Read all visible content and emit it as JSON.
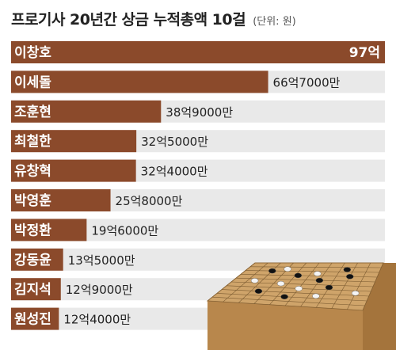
{
  "chart_data": {
    "type": "bar",
    "orientation": "horizontal",
    "title": "프로기사 20년간 상금 누적총액 10걸",
    "unit_label": "(단위: 원)",
    "categories": [
      "이창호",
      "이세돌",
      "조훈현",
      "최철한",
      "유창혁",
      "박영훈",
      "박정환",
      "강동윤",
      "김지석",
      "원성진"
    ],
    "values": [
      9700000000,
      6670000000,
      3890000000,
      3250000000,
      3240000000,
      2580000000,
      1960000000,
      1350000000,
      1290000000,
      1240000000
    ],
    "value_labels": [
      "97억",
      "66억7000만",
      "38억9000만",
      "32억5000만",
      "32억4000만",
      "25억8000만",
      "19억6000만",
      "13억5000만",
      "12억9000만",
      "12억4000만"
    ],
    "colors": {
      "bar": "#8B4A2B",
      "track": "#E9E9E9",
      "bar_text": "#FFFFFF",
      "value_text": "#222222",
      "board_wood": "#CFA46A"
    },
    "label_placement": "value inside bar for top entry, outside for others"
  },
  "illustration": {
    "icon": "go-board-icon"
  }
}
